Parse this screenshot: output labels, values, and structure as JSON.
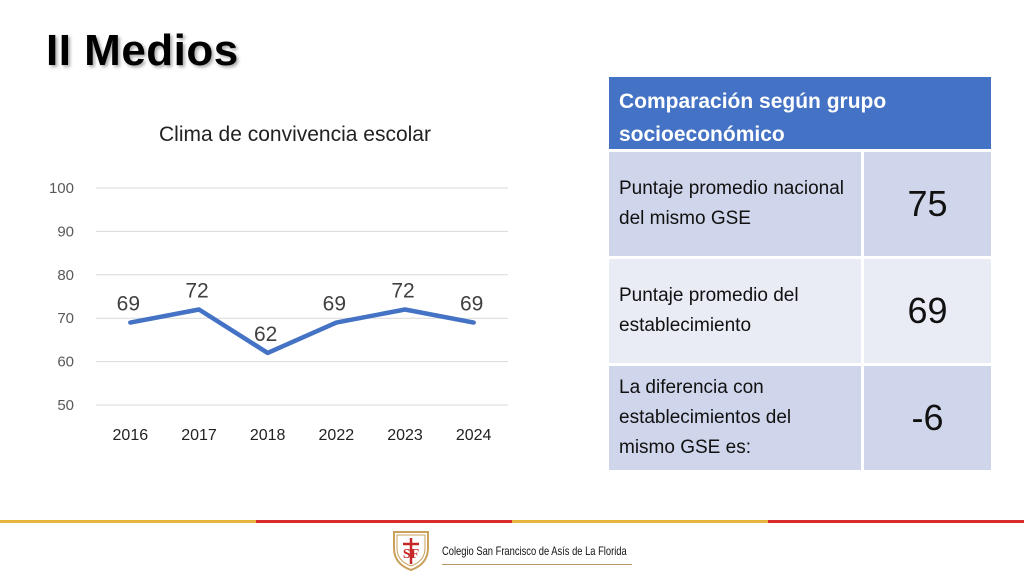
{
  "slide": {
    "title": "II Medios"
  },
  "chart_data": {
    "type": "line",
    "title": "Clima de convivencia escolar",
    "categories": [
      "2016",
      "2017",
      "2018",
      "2022",
      "2023",
      "2024"
    ],
    "series": [
      {
        "values": [
          69,
          72,
          62,
          69,
          72,
          69
        ]
      }
    ],
    "ylim": [
      50,
      100
    ],
    "yticks": [
      "100",
      "90",
      "80",
      "70",
      "60",
      "50"
    ],
    "grid": true,
    "line_color": "#4472c4"
  },
  "table": {
    "header": "Comparación según grupo socioeconómico",
    "rows": [
      {
        "label": "Puntaje promedio nacional del mismo GSE",
        "value": "75"
      },
      {
        "label": "Puntaje promedio del establecimiento",
        "value": "69"
      },
      {
        "label": "La diferencia con establecimientos del mismo GSE es:",
        "value": "-6"
      }
    ]
  },
  "footer": {
    "school_name": "Colegio San Francisco de Asís de La Florida",
    "logo_initials": "SF",
    "colors": {
      "gold": "#e5b53e",
      "red": "#d92d2d"
    }
  }
}
